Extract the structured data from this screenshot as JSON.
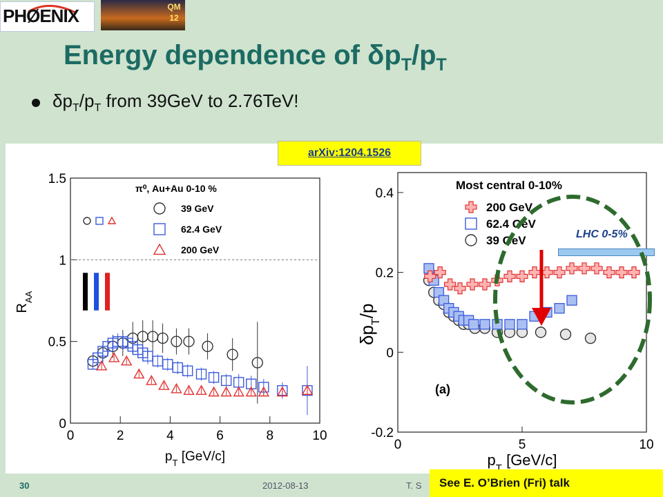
{
  "logos": {
    "experiment_name": "PHØENIX",
    "conference_badge": "QM 12"
  },
  "title": {
    "prefix": "Energy dependence of ",
    "delta": "δ",
    "p": "p",
    "sub": "T",
    "slash": "/p",
    "sub2": "T"
  },
  "bullet": {
    "delta": "δ",
    "p": "p",
    "sub": "T",
    "slash": "/p",
    "sub2": "T",
    "suffix": " from 39GeV to 2.76TeV!"
  },
  "arxiv": "arXiv:1204.1526",
  "lhc_label": "LHC 0-5%",
  "footer": {
    "slide_number": "30",
    "date": "2012-08-13",
    "author": "T. S"
  },
  "see_talk": "See E. O’Brien (Fri) talk",
  "colors": {
    "title": "#1c6b63",
    "background": "#cfe3cf",
    "s39": "#333333",
    "s62": "#3b5bdb",
    "s200": "#e03131",
    "ellipse": "#2e6b2e",
    "arrow": "#e00000"
  },
  "chart_data": [
    {
      "type": "scatter",
      "xlabel": "p",
      "xlabel_sub": "T",
      "xlabel_unit": " [GeV/c]",
      "ylabel": "R",
      "ylabel_sub": "AA",
      "xlim": [
        0,
        10
      ],
      "ylim": [
        0,
        1.5
      ],
      "xticks": [
        0,
        2,
        4,
        6,
        8,
        10
      ],
      "yticks": [
        0,
        0.5,
        1,
        1.5
      ],
      "reference_line": 1,
      "legend_title": "π⁰, Au+Au 0-10 %",
      "legend_placement": "top-right",
      "series": [
        {
          "name": "39 GeV",
          "marker": "circle",
          "color": "#333333",
          "x": [
            0.9,
            1.3,
            1.7,
            2.1,
            2.5,
            2.9,
            3.3,
            3.7,
            4.25,
            4.75,
            5.5,
            6.5,
            7.5
          ],
          "y": [
            0.38,
            0.43,
            0.47,
            0.49,
            0.52,
            0.53,
            0.53,
            0.52,
            0.5,
            0.5,
            0.47,
            0.42,
            0.37
          ],
          "err": [
            0.05,
            0.06,
            0.07,
            0.08,
            0.1,
            0.1,
            0.1,
            0.09,
            0.08,
            0.08,
            0.08,
            0.1,
            0.25
          ]
        },
        {
          "name": "62.4 GeV",
          "marker": "square",
          "color": "#3b5bdb",
          "x": [
            0.9,
            1.1,
            1.3,
            1.5,
            1.7,
            1.9,
            2.1,
            2.3,
            2.5,
            2.7,
            2.9,
            3.1,
            3.5,
            3.9,
            4.3,
            4.7,
            5.25,
            5.75,
            6.25,
            6.75,
            7.25,
            7.75,
            8.5,
            9.5
          ],
          "y": [
            0.36,
            0.4,
            0.44,
            0.47,
            0.49,
            0.5,
            0.5,
            0.49,
            0.47,
            0.45,
            0.43,
            0.41,
            0.38,
            0.36,
            0.34,
            0.32,
            0.3,
            0.28,
            0.26,
            0.25,
            0.24,
            0.22,
            0.2,
            0.2
          ],
          "err": [
            0.03,
            0.03,
            0.04,
            0.04,
            0.04,
            0.05,
            0.05,
            0.05,
            0.05,
            0.05,
            0.05,
            0.05,
            0.04,
            0.04,
            0.04,
            0.04,
            0.04,
            0.04,
            0.04,
            0.05,
            0.05,
            0.05,
            0.05,
            0.15
          ]
        },
        {
          "name": "200 GeV",
          "marker": "triangle",
          "color": "#e03131",
          "x": [
            1.25,
            1.75,
            2.25,
            2.75,
            3.25,
            3.75,
            4.25,
            4.75,
            5.25,
            5.75,
            6.25,
            6.75,
            7.25,
            7.75,
            8.5,
            9.5
          ],
          "y": [
            0.35,
            0.4,
            0.38,
            0.3,
            0.26,
            0.23,
            0.21,
            0.2,
            0.2,
            0.19,
            0.19,
            0.19,
            0.19,
            0.19,
            0.19,
            0.2
          ],
          "err": [
            0.02,
            0.02,
            0.02,
            0.02,
            0.02,
            0.02,
            0.02,
            0.02,
            0.02,
            0.02,
            0.02,
            0.02,
            0.02,
            0.02,
            0.02,
            0.03
          ]
        }
      ]
    },
    {
      "type": "scatter",
      "xlabel": "p",
      "xlabel_sub": "T",
      "xlabel_unit": " [GeV/c]",
      "ylabel": "δp",
      "ylabel_sub": "T",
      "ylabel_suffix": "/p",
      "xlim": [
        0,
        10
      ],
      "ylim": [
        -0.2,
        0.45
      ],
      "xticks": [
        0,
        5,
        10
      ],
      "yticks": [
        -0.2,
        0,
        0.2,
        0.4
      ],
      "legend_title": "Most central 0-10%",
      "legend_placement": "top-right",
      "panel_label": "(a)",
      "series": [
        {
          "name": "200 GeV",
          "marker": "cross",
          "color": "#e03131",
          "x": [
            1.3,
            1.7,
            2.1,
            2.5,
            3.0,
            3.5,
            4.0,
            4.5,
            5.0,
            5.5,
            6.0,
            6.5,
            7.0,
            7.5,
            8.0,
            8.5,
            9.0,
            9.5
          ],
          "y": [
            0.19,
            0.2,
            0.17,
            0.16,
            0.17,
            0.17,
            0.18,
            0.19,
            0.19,
            0.2,
            0.2,
            0.2,
            0.21,
            0.21,
            0.21,
            0.2,
            0.2,
            0.2
          ]
        },
        {
          "name": "62.4 GeV",
          "marker": "square",
          "color": "#3b5bdb",
          "x": [
            1.25,
            1.45,
            1.65,
            1.85,
            2.05,
            2.25,
            2.45,
            2.65,
            2.85,
            3.05,
            3.5,
            4.0,
            4.5,
            5.0,
            5.5,
            6.0,
            6.5,
            7.0
          ],
          "y": [
            0.21,
            0.18,
            0.15,
            0.13,
            0.11,
            0.1,
            0.09,
            0.08,
            0.08,
            0.07,
            0.07,
            0.07,
            0.07,
            0.07,
            0.09,
            0.1,
            0.11,
            0.13
          ]
        },
        {
          "name": "39 GeV",
          "marker": "circle",
          "color": "#333333",
          "x": [
            1.25,
            1.45,
            1.65,
            1.85,
            2.05,
            2.25,
            2.45,
            2.65,
            2.85,
            3.1,
            3.5,
            4.0,
            4.5,
            5.0,
            5.75,
            6.75,
            7.75
          ],
          "y": [
            0.18,
            0.15,
            0.13,
            0.12,
            0.1,
            0.09,
            0.08,
            0.07,
            0.07,
            0.06,
            0.06,
            0.05,
            0.05,
            0.05,
            0.05,
            0.045,
            0.035
          ]
        }
      ]
    }
  ]
}
